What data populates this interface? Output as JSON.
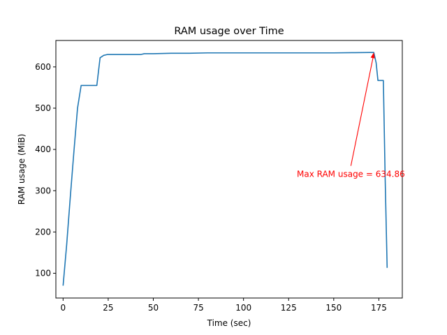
{
  "chart_data": {
    "type": "line",
    "title": "RAM usage over Time",
    "xlabel": "Time (sec)",
    "ylabel": "RAM usage (MiB)",
    "xlim": [
      -4,
      188
    ],
    "ylim": [
      40,
      664
    ],
    "x_ticks": [
      0,
      25,
      50,
      75,
      100,
      125,
      150,
      175
    ],
    "y_ticks": [
      100,
      200,
      300,
      400,
      500,
      600
    ],
    "grid": false,
    "series": [
      {
        "color": "#1f77b4",
        "x": [
          0,
          2,
          4,
          6,
          8,
          10,
          12,
          14,
          16,
          18.7,
          20.5,
          22.5,
          24.5,
          26,
          30,
          35,
          40,
          43,
          45,
          50,
          60,
          70,
          80,
          90,
          100,
          110,
          120,
          130,
          140,
          150,
          160,
          170,
          172.2,
          173.5,
          174.5,
          176,
          177.5,
          178.5,
          179.6
        ],
        "y": [
          70,
          170,
          285,
          395,
          500,
          555,
          555,
          555,
          555,
          555,
          622,
          628,
          630,
          630,
          630,
          630,
          630,
          630,
          632,
          632,
          633,
          633,
          634,
          634,
          634,
          634,
          634,
          634,
          634,
          634,
          634.5,
          634.86,
          634.86,
          610,
          567,
          567,
          567,
          330,
          113
        ]
      }
    ],
    "annotations": [
      {
        "text": "Max RAM usage = 634.86",
        "color": "#ff0000",
        "point": [
          172.2,
          634.86
        ],
        "text_pos": [
          159.5,
          340
        ]
      }
    ]
  }
}
